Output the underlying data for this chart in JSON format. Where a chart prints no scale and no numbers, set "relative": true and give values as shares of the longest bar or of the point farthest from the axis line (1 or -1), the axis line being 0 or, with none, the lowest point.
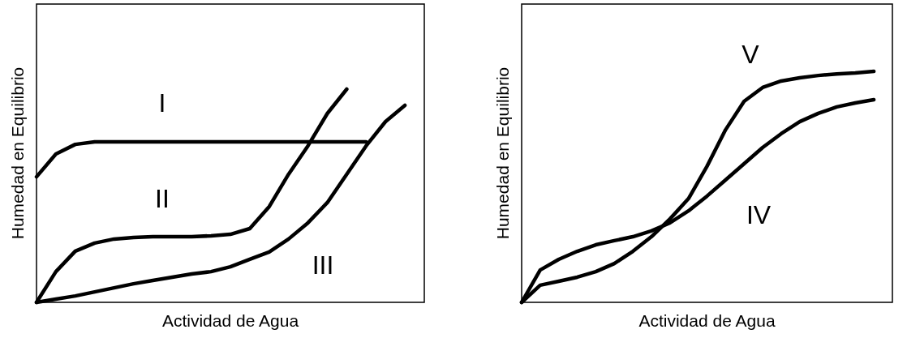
{
  "chart_data": [
    {
      "type": "line",
      "relative": true,
      "xlabel": "Actividad de Agua",
      "ylabel": "Humedad en Equilibrio",
      "categories": [
        null,
        null,
        null,
        null,
        null,
        null,
        null,
        null,
        null,
        null,
        null,
        null,
        null,
        null,
        null,
        null,
        null,
        null,
        null,
        null,
        null
      ],
      "series": [
        {
          "name": "I",
          "color": "#000000",
          "values": [
            0.589,
            0.696,
            0.741,
            0.753,
            0.753,
            0.753,
            0.753,
            0.753,
            0.753,
            0.753,
            0.753,
            0.753,
            0.753,
            0.753,
            0.753,
            0.753,
            0.753,
            0.753,
            null,
            null,
            null
          ]
        },
        {
          "name": "II",
          "color": "#000000",
          "values": [
            0,
            0.144,
            0.24,
            0.278,
            0.297,
            0.304,
            0.308,
            0.308,
            0.308,
            0.312,
            0.319,
            0.346,
            0.449,
            0.601,
            0.734,
            0.886,
            1,
            null,
            null,
            null,
            null
          ]
        },
        {
          "name": "III",
          "color": "#000000",
          "values": [
            0,
            0.015,
            0.03,
            0.049,
            0.068,
            0.087,
            0.103,
            0.118,
            0.133,
            0.144,
            0.167,
            0.202,
            0.236,
            0.297,
            0.373,
            0.468,
            0.601,
            0.734,
            0.848,
            0.924,
            null
          ]
        }
      ]
    },
    {
      "type": "line",
      "relative": true,
      "xlabel": "Actividad de Agua",
      "ylabel": "Humedad en Equilibrio",
      "categories": [
        null,
        null,
        null,
        null,
        null,
        null,
        null,
        null,
        null,
        null,
        null,
        null,
        null,
        null,
        null,
        null,
        null,
        null,
        null,
        null,
        null
      ],
      "series": [
        {
          "name": "IV",
          "color": "#000000",
          "values": [
            0,
            0.14,
            0.186,
            0.221,
            0.249,
            0.267,
            0.284,
            0.309,
            0.344,
            0.396,
            0.46,
            0.53,
            0.6,
            0.67,
            0.73,
            0.782,
            0.818,
            0.846,
            0.863,
            0.877,
            null
          ]
        },
        {
          "name": "V",
          "color": "#000000",
          "values": [
            0,
            0.074,
            0.091,
            0.109,
            0.133,
            0.168,
            0.221,
            0.284,
            0.361,
            0.449,
            0.589,
            0.747,
            0.87,
            0.93,
            0.958,
            0.972,
            0.982,
            0.989,
            0.993,
            1,
            null
          ]
        }
      ]
    }
  ]
}
